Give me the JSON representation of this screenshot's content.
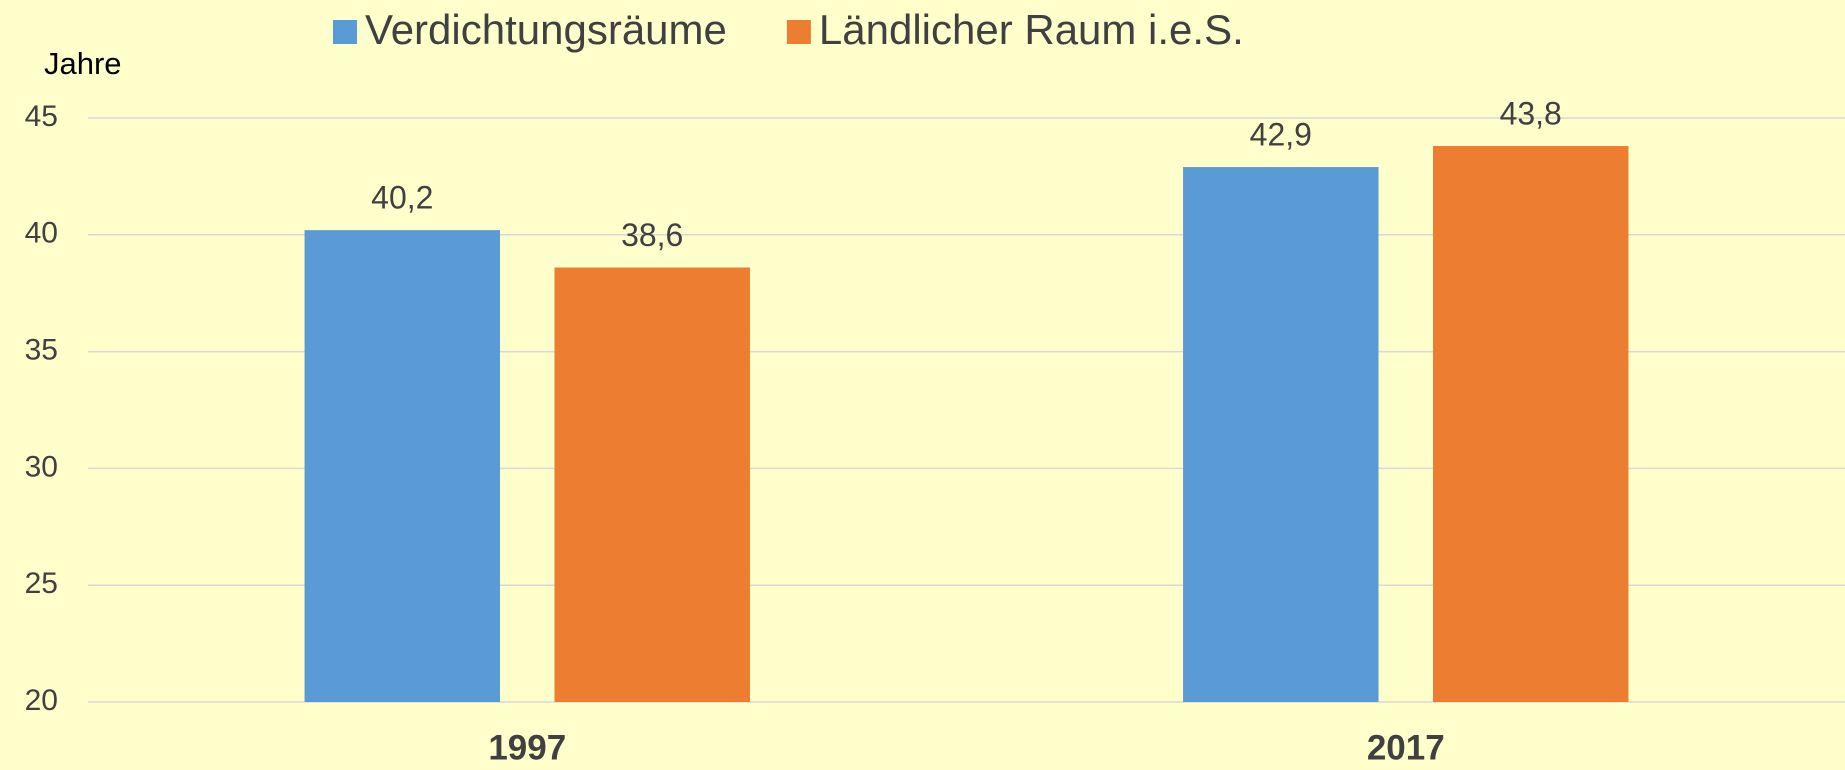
{
  "chart_data": {
    "type": "bar",
    "y_label": "Jahre",
    "categories": [
      "1997",
      "2017"
    ],
    "series": [
      {
        "name": "Verdichtungsräume",
        "color": "#5b9bd5",
        "values": [
          40.2,
          42.9
        ],
        "value_labels": [
          "40,2",
          "42,9"
        ]
      },
      {
        "name": "Ländlicher Raum i.e.S.",
        "color": "#ed7d31",
        "values": [
          38.6,
          43.8
        ],
        "value_labels": [
          "38,6",
          "43,8"
        ]
      }
    ],
    "ylim": [
      20,
      45
    ],
    "yticks": [
      20,
      25,
      30,
      35,
      40,
      45
    ],
    "grid": true,
    "legend": "top"
  }
}
